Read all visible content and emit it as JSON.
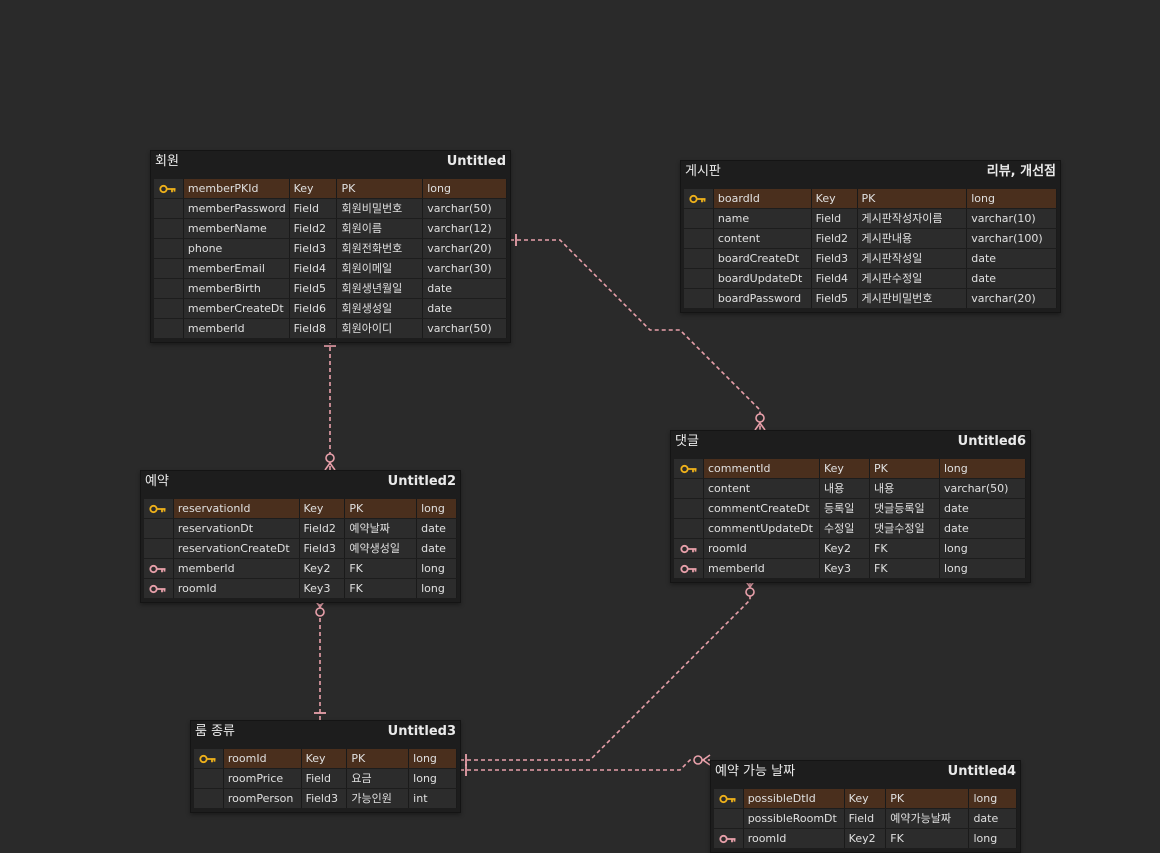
{
  "tables": [
    {
      "id": "member",
      "name": "회원",
      "alias": "Untitled",
      "rows": [
        {
          "key_type": "pk",
          "icon": "key-gold-icon",
          "col": "memberPKId",
          "kind": "Key",
          "logical": "PK",
          "type": "long"
        },
        {
          "key_type": "none",
          "icon": "",
          "col": "memberPassword",
          "kind": "Field",
          "logical": "회원비밀번호",
          "type": "varchar(50)"
        },
        {
          "key_type": "none",
          "icon": "",
          "col": "memberName",
          "kind": "Field2",
          "logical": "회원이름",
          "type": "varchar(12)"
        },
        {
          "key_type": "none",
          "icon": "",
          "col": "phone",
          "kind": "Field3",
          "logical": "회원전화번호",
          "type": "varchar(20)"
        },
        {
          "key_type": "none",
          "icon": "",
          "col": "memberEmail",
          "kind": "Field4",
          "logical": "회원이메일",
          "type": "varchar(30)"
        },
        {
          "key_type": "none",
          "icon": "",
          "col": "memberBirth",
          "kind": "Field5",
          "logical": "회원생년월일",
          "type": "date"
        },
        {
          "key_type": "none",
          "icon": "",
          "col": "memberCreateDt",
          "kind": "Field6",
          "logical": "회원생성일",
          "type": "date"
        },
        {
          "key_type": "none",
          "icon": "",
          "col": "memberId",
          "kind": "Field8",
          "logical": "회원아이디",
          "type": "varchar(50)"
        }
      ]
    },
    {
      "id": "board",
      "name": "게시판",
      "alias": "리뷰, 개선점",
      "rows": [
        {
          "key_type": "pk",
          "icon": "key-gold-icon",
          "col": "boardId",
          "kind": "Key",
          "logical": "PK",
          "type": "long"
        },
        {
          "key_type": "none",
          "icon": "",
          "col": "name",
          "kind": "Field",
          "logical": "게시판작성자이름",
          "type": "varchar(10)"
        },
        {
          "key_type": "none",
          "icon": "",
          "col": "content",
          "kind": "Field2",
          "logical": "게시판내용",
          "type": "varchar(100)"
        },
        {
          "key_type": "none",
          "icon": "",
          "col": "boardCreateDt",
          "kind": "Field3",
          "logical": "게시판작성일",
          "type": "date"
        },
        {
          "key_type": "none",
          "icon": "",
          "col": "boardUpdateDt",
          "kind": "Field4",
          "logical": "게시판수정일",
          "type": "date"
        },
        {
          "key_type": "none",
          "icon": "",
          "col": "boardPassword",
          "kind": "Field5",
          "logical": "게시판비밀번호",
          "type": "varchar(20)"
        }
      ]
    },
    {
      "id": "reservation",
      "name": "예약",
      "alias": "Untitled2",
      "rows": [
        {
          "key_type": "pk",
          "icon": "key-gold-icon",
          "col": "reservationId",
          "kind": "Key",
          "logical": "PK",
          "type": "long"
        },
        {
          "key_type": "none",
          "icon": "",
          "col": "reservationDt",
          "kind": "Field2",
          "logical": "예약날짜",
          "type": "date"
        },
        {
          "key_type": "none",
          "icon": "",
          "col": "reservationCreateDt",
          "kind": "Field3",
          "logical": "예약생성일",
          "type": "date"
        },
        {
          "key_type": "fk",
          "icon": "key-pink-icon",
          "col": "memberId",
          "kind": "Key2",
          "logical": "FK",
          "type": "long"
        },
        {
          "key_type": "fk",
          "icon": "key-pink-icon",
          "col": "roomId",
          "kind": "Key3",
          "logical": "FK",
          "type": "long"
        }
      ]
    },
    {
      "id": "comment",
      "name": "댓글",
      "alias": "Untitled6",
      "rows": [
        {
          "key_type": "pk",
          "icon": "key-gold-icon",
          "col": "commentId",
          "kind": "Key",
          "logical": "PK",
          "type": "long"
        },
        {
          "key_type": "none",
          "icon": "",
          "col": "content",
          "kind": "내용",
          "logical": "내용",
          "type": "varchar(50)"
        },
        {
          "key_type": "none",
          "icon": "",
          "col": "commentCreateDt",
          "kind": "등록일",
          "logical": "댓글등록일",
          "type": "date"
        },
        {
          "key_type": "none",
          "icon": "",
          "col": "commentUpdateDt",
          "kind": "수정일",
          "logical": "댓글수정일",
          "type": "date"
        },
        {
          "key_type": "fk",
          "icon": "key-pink-icon",
          "col": "roomId",
          "kind": "Key2",
          "logical": "FK",
          "type": "long"
        },
        {
          "key_type": "fk",
          "icon": "key-pink-icon",
          "col": "memberId",
          "kind": "Key3",
          "logical": "FK",
          "type": "long"
        }
      ]
    },
    {
      "id": "room",
      "name": "룸 종류",
      "alias": "Untitled3",
      "rows": [
        {
          "key_type": "pk",
          "icon": "key-gold-icon",
          "col": "roomId",
          "kind": "Key",
          "logical": "PK",
          "type": "long"
        },
        {
          "key_type": "none",
          "icon": "",
          "col": "roomPrice",
          "kind": "Field",
          "logical": "요금",
          "type": "long"
        },
        {
          "key_type": "none",
          "icon": "",
          "col": "roomPerson",
          "kind": "Field3",
          "logical": "가능인원",
          "type": "int"
        }
      ]
    },
    {
      "id": "available",
      "name": "예약 가능 날짜",
      "alias": "Untitled4",
      "rows": [
        {
          "key_type": "pk",
          "icon": "key-gold-icon",
          "col": "possibleDtId",
          "kind": "Key",
          "logical": "PK",
          "type": "long"
        },
        {
          "key_type": "none",
          "icon": "",
          "col": "possibleRoomDt",
          "kind": "Field",
          "logical": "예약가능날짜",
          "type": "date"
        },
        {
          "key_type": "fk",
          "icon": "key-pink-icon",
          "col": "roomId",
          "kind": "Key2",
          "logical": "FK",
          "type": "long"
        }
      ]
    }
  ],
  "relationships": [
    {
      "from": "member",
      "to": "reservation",
      "from_cardinality": "one",
      "to_cardinality": "zero-or-many"
    },
    {
      "from": "member",
      "to": "comment",
      "from_cardinality": "one",
      "to_cardinality": "zero-or-many"
    },
    {
      "from": "room",
      "to": "reservation",
      "from_cardinality": "one",
      "to_cardinality": "zero-or-many"
    },
    {
      "from": "room",
      "to": "comment",
      "from_cardinality": "one",
      "to_cardinality": "zero-or-many"
    },
    {
      "from": "room",
      "to": "available",
      "from_cardinality": "one",
      "to_cardinality": "zero-or-many"
    }
  ],
  "colors": {
    "background": "#2a2a2a",
    "table_body": "#1d1d1d",
    "cell": "#2c2c2c",
    "pk_row": "#4a2f1d",
    "pk_key": "#f0b21a",
    "fk_key": "#e8a0aa",
    "connector": "#e8a0aa",
    "text": "#e0e0e0"
  }
}
